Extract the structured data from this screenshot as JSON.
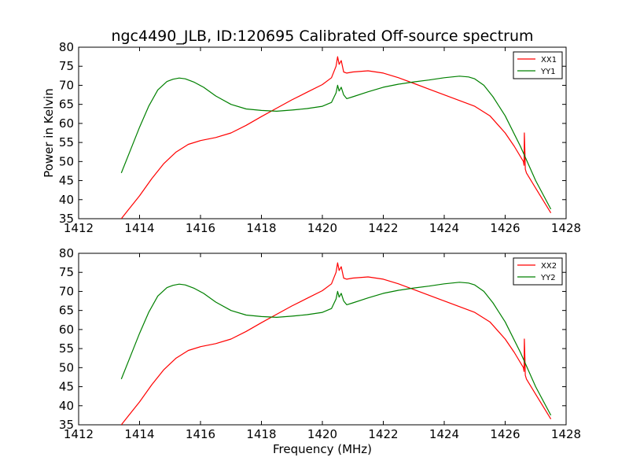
{
  "figure": {
    "title": "ngc4490_JLB, ID:120695 Calibrated Off-source spectrum"
  },
  "chart_data": [
    {
      "type": "line",
      "title": "ngc4490_JLB, ID:120695 Calibrated Off-source spectrum",
      "xlabel": "",
      "ylabel": "Power in Kelvin",
      "xlim": [
        1412,
        1428
      ],
      "ylim": [
        35,
        80
      ],
      "xticks": [
        "1412",
        "1414",
        "1416",
        "1418",
        "1420",
        "1422",
        "1424",
        "1426",
        "1428"
      ],
      "yticks": [
        "35",
        "40",
        "45",
        "50",
        "55",
        "60",
        "65",
        "70",
        "75",
        "80"
      ],
      "grid": false,
      "legend_position": "top-right",
      "series": [
        {
          "name": "XX1",
          "color": "#ff0000",
          "x": [
            1413.4,
            1413.6,
            1414.0,
            1414.4,
            1414.8,
            1415.2,
            1415.6,
            1416.0,
            1416.5,
            1417.0,
            1417.5,
            1418.0,
            1418.5,
            1419.0,
            1419.5,
            1420.0,
            1420.3,
            1420.45,
            1420.5,
            1420.55,
            1420.62,
            1420.7,
            1420.8,
            1421.0,
            1421.5,
            1422.0,
            1422.5,
            1423.0,
            1423.5,
            1424.0,
            1424.5,
            1425.0,
            1425.5,
            1426.0,
            1426.3,
            1426.6,
            1426.62,
            1426.63,
            1426.65,
            1426.66,
            1426.7,
            1427.0,
            1427.5
          ],
          "y": [
            35,
            37,
            41,
            45.5,
            49.5,
            52.5,
            54.5,
            55.5,
            56.3,
            57.5,
            59.5,
            61.8,
            64,
            66.2,
            68.2,
            70.2,
            72,
            75,
            77.5,
            75.5,
            76.5,
            73.5,
            73.2,
            73.5,
            73.8,
            73.2,
            72,
            70.5,
            69,
            67.5,
            66,
            64.5,
            62,
            57.5,
            54,
            50,
            49,
            57.5,
            52,
            48,
            47,
            43,
            36.5
          ]
        },
        {
          "name": "YY1",
          "color": "#008000",
          "x": [
            1413.4,
            1413.7,
            1414.0,
            1414.3,
            1414.6,
            1414.9,
            1415.1,
            1415.3,
            1415.5,
            1415.8,
            1416.1,
            1416.5,
            1417.0,
            1417.5,
            1418.0,
            1418.5,
            1419.0,
            1419.5,
            1420.0,
            1420.3,
            1420.45,
            1420.5,
            1420.55,
            1420.62,
            1420.7,
            1420.8,
            1421.0,
            1421.5,
            1422.0,
            1422.5,
            1423.0,
            1423.5,
            1424.0,
            1424.5,
            1424.8,
            1425.0,
            1425.3,
            1425.6,
            1426.0,
            1426.5,
            1427.0,
            1427.5
          ],
          "y": [
            47,
            53,
            59,
            64.5,
            68.8,
            71,
            71.6,
            71.9,
            71.7,
            70.8,
            69.5,
            67.2,
            65,
            63.8,
            63.4,
            63.2,
            63.5,
            63.9,
            64.5,
            65.5,
            68,
            70,
            68.5,
            69.5,
            67.5,
            66.5,
            67,
            68.3,
            69.5,
            70.3,
            70.9,
            71.4,
            72,
            72.4,
            72.2,
            71.7,
            70,
            67,
            62,
            54,
            45,
            37.5
          ]
        }
      ]
    },
    {
      "type": "line",
      "title": "",
      "xlabel": "Frequency (MHz)",
      "ylabel": "",
      "xlim": [
        1412,
        1428
      ],
      "ylim": [
        35,
        80
      ],
      "xticks": [
        "1412",
        "1414",
        "1416",
        "1418",
        "1420",
        "1422",
        "1424",
        "1426",
        "1428"
      ],
      "yticks": [
        "35",
        "40",
        "45",
        "50",
        "55",
        "60",
        "65",
        "70",
        "75",
        "80"
      ],
      "grid": false,
      "legend_position": "top-right",
      "series": [
        {
          "name": "XX2",
          "color": "#ff0000",
          "x": [
            1413.4,
            1413.6,
            1414.0,
            1414.4,
            1414.8,
            1415.2,
            1415.6,
            1416.0,
            1416.5,
            1417.0,
            1417.5,
            1418.0,
            1418.5,
            1419.0,
            1419.5,
            1420.0,
            1420.3,
            1420.45,
            1420.5,
            1420.55,
            1420.62,
            1420.7,
            1420.8,
            1421.0,
            1421.5,
            1422.0,
            1422.5,
            1423.0,
            1423.5,
            1424.0,
            1424.5,
            1425.0,
            1425.5,
            1426.0,
            1426.3,
            1426.6,
            1426.62,
            1426.63,
            1426.65,
            1426.66,
            1426.7,
            1427.0,
            1427.5
          ],
          "y": [
            35,
            37,
            41,
            45.5,
            49.5,
            52.5,
            54.5,
            55.5,
            56.3,
            57.5,
            59.5,
            61.8,
            64,
            66.2,
            68.2,
            70.2,
            72,
            75,
            77.5,
            75.5,
            76.5,
            73.5,
            73.2,
            73.5,
            73.8,
            73.2,
            72,
            70.5,
            69,
            67.5,
            66,
            64.5,
            62,
            57.5,
            54,
            50,
            49,
            57.5,
            52,
            48,
            47,
            43,
            36.5
          ]
        },
        {
          "name": "YY2",
          "color": "#008000",
          "x": [
            1413.4,
            1413.7,
            1414.0,
            1414.3,
            1414.6,
            1414.9,
            1415.1,
            1415.3,
            1415.5,
            1415.8,
            1416.1,
            1416.5,
            1417.0,
            1417.5,
            1418.0,
            1418.5,
            1419.0,
            1419.5,
            1420.0,
            1420.3,
            1420.45,
            1420.5,
            1420.55,
            1420.62,
            1420.7,
            1420.8,
            1421.0,
            1421.5,
            1422.0,
            1422.5,
            1423.0,
            1423.5,
            1424.0,
            1424.5,
            1424.8,
            1425.0,
            1425.3,
            1425.6,
            1426.0,
            1426.5,
            1427.0,
            1427.5
          ],
          "y": [
            47,
            53,
            59,
            64.5,
            68.8,
            71,
            71.6,
            71.9,
            71.7,
            70.8,
            69.5,
            67.2,
            65,
            63.8,
            63.4,
            63.2,
            63.5,
            63.9,
            64.5,
            65.5,
            68,
            70,
            68.5,
            69.5,
            67.5,
            66.5,
            67,
            68.3,
            69.5,
            70.3,
            70.9,
            71.4,
            72,
            72.4,
            72.2,
            71.7,
            70,
            67,
            62,
            54,
            45,
            37.5
          ]
        }
      ]
    }
  ]
}
